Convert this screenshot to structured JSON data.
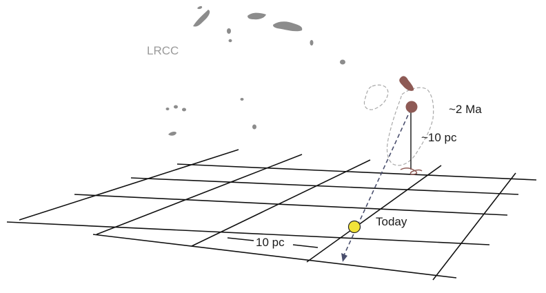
{
  "labels": {
    "cluster_name": "LRCC",
    "age": "~2 Ma",
    "height": "~10 pc",
    "present": "Today",
    "scale": "10 pc"
  },
  "colors": {
    "grid": "#111111",
    "cloud": "#8c8c8c",
    "past_position": "#8e5a55",
    "today_marker": "#f2e33a",
    "trajectory": "#4a4f6e",
    "dashed_outline": "#a8a8a8"
  }
}
